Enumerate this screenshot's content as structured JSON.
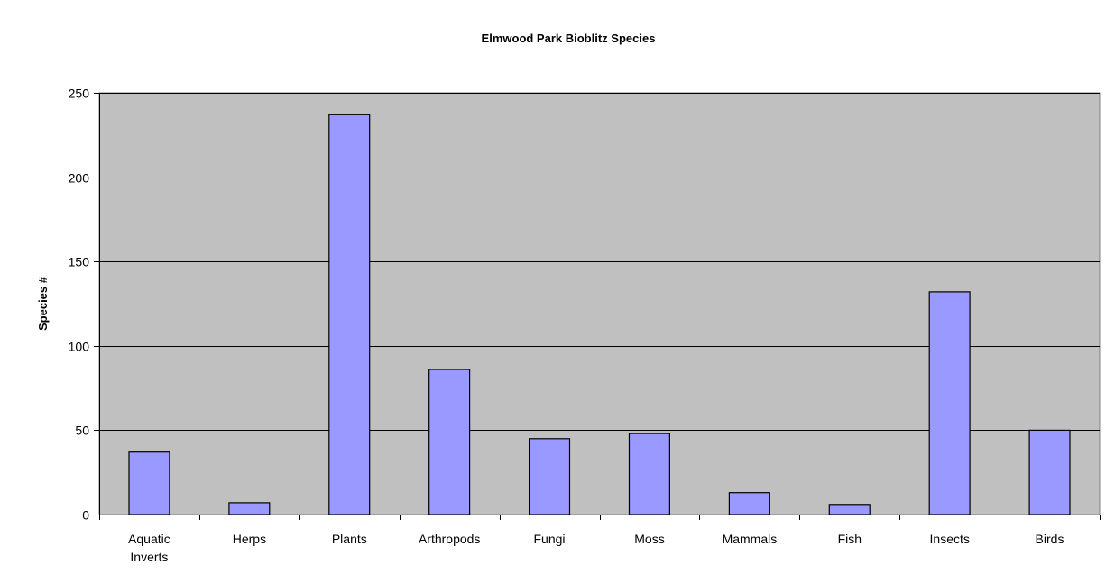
{
  "chart_data": {
    "type": "bar",
    "title": "Elmwood Park Bioblitz Species",
    "xlabel": "",
    "ylabel": "Species #",
    "ylim": [
      0,
      250
    ],
    "yticks": [
      0,
      50,
      100,
      150,
      200,
      250
    ],
    "categories": [
      "Aquatic Inverts",
      "Herps",
      "Plants",
      "Arthropods",
      "Fungi",
      "Moss",
      "Mammals",
      "Fish",
      "Insects",
      "Birds"
    ],
    "category_lines": [
      [
        "Aquatic",
        "Inverts"
      ],
      [
        "Herps"
      ],
      [
        "Plants"
      ],
      [
        "Arthropods"
      ],
      [
        "Fungi"
      ],
      [
        "Moss"
      ],
      [
        "Mammals"
      ],
      [
        "Fish"
      ],
      [
        "Insects"
      ],
      [
        "Birds"
      ]
    ],
    "values": [
      37,
      7,
      237,
      86,
      45,
      48,
      13,
      6,
      132,
      50
    ],
    "grid": true,
    "legend": "none",
    "colors": {
      "bar_fill": "#9999ff",
      "bar_stroke": "#000000",
      "plot_background": "#c0c0c0",
      "gridline": "#000000",
      "text": "#000000"
    }
  }
}
